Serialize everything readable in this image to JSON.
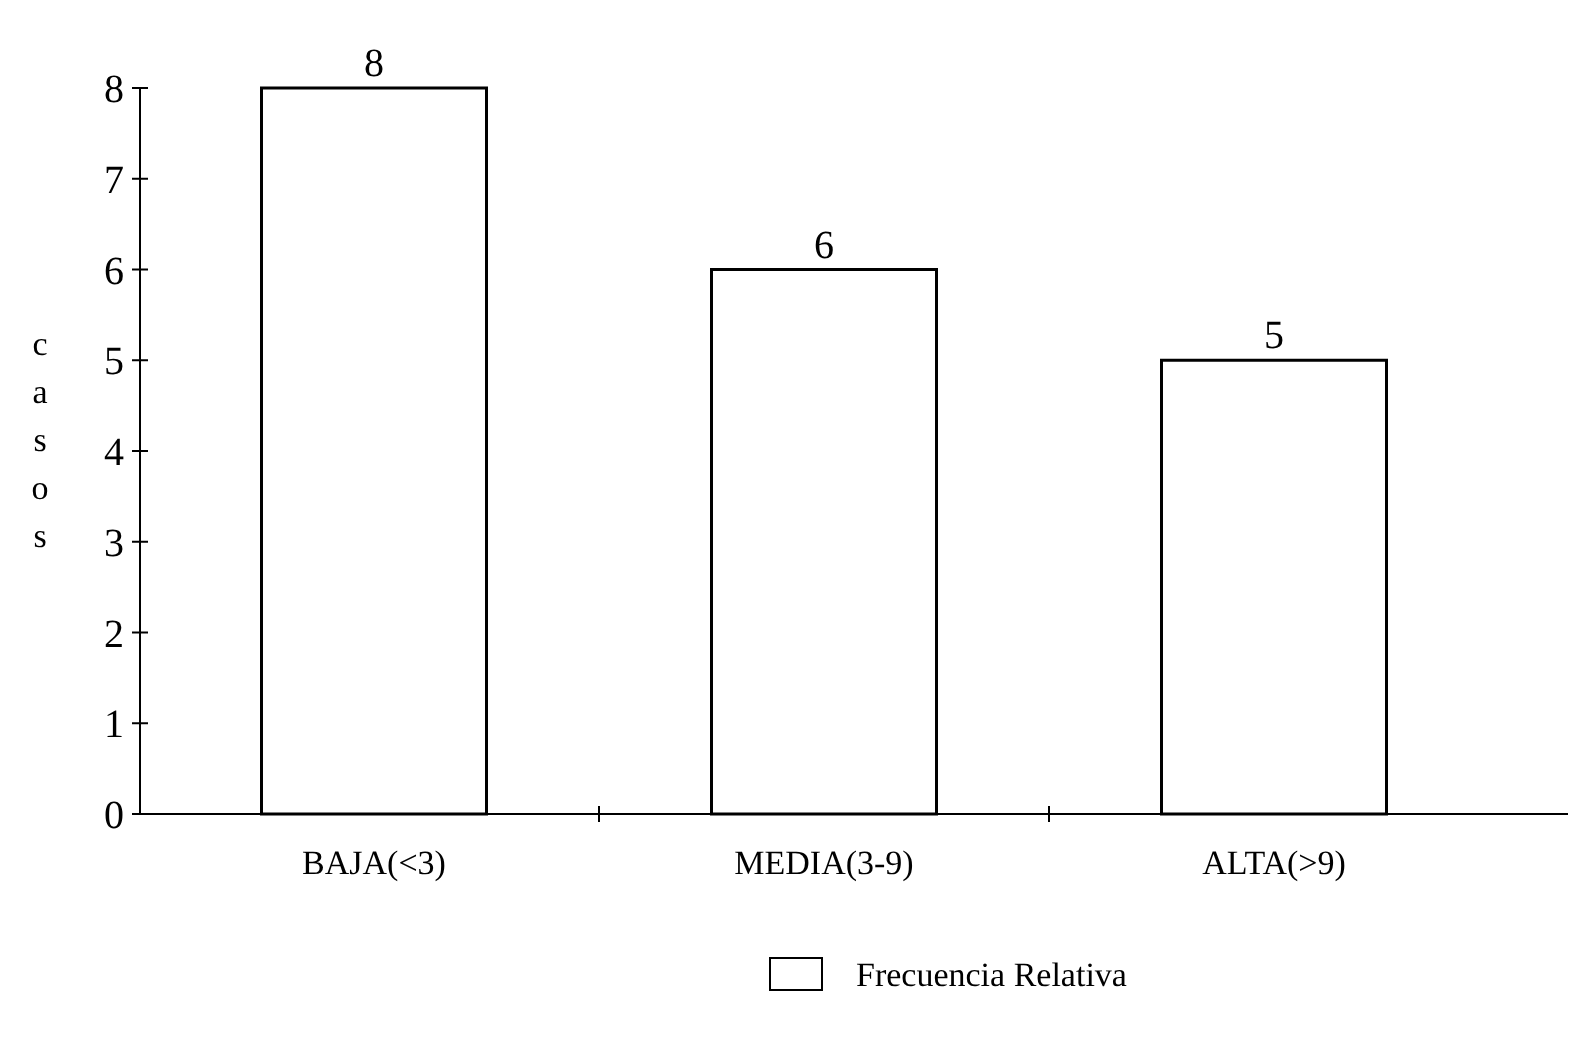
{
  "chart_data": {
    "type": "bar",
    "ylabel": "casos",
    "categories": [
      "BAJA(<3)",
      "MEDIA(3-9)",
      "ALTA(>9)"
    ],
    "series": [
      {
        "name": "Frecuencia Relativa",
        "color": "#ffffff",
        "values": [
          8,
          6,
          5
        ]
      }
    ],
    "ylim": [
      0,
      8
    ],
    "yticks": [
      0,
      1,
      2,
      3,
      4,
      5,
      6,
      7,
      8
    ],
    "data_labels": true,
    "legend": "bottom",
    "grid": false
  }
}
